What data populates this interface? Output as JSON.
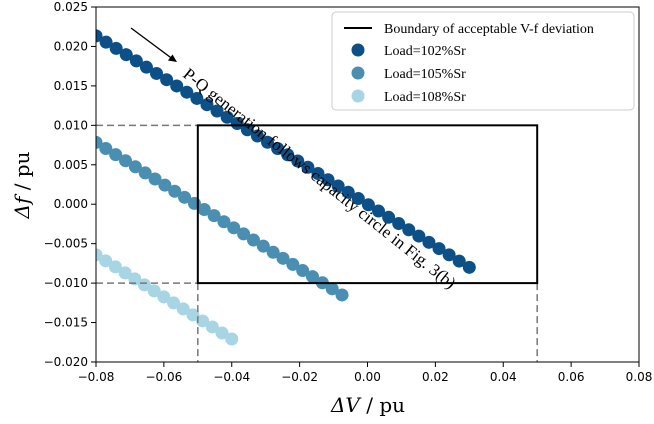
{
  "chart_data": {
    "type": "scatter",
    "xlabel_symbol": "ΔV",
    "xlabel_unit": " / pu",
    "ylabel_symbol": "Δf",
    "ylabel_unit": " / pu",
    "xlim": [
      -0.08,
      0.08
    ],
    "ylim": [
      -0.02,
      0.025
    ],
    "x_ticks": [
      -0.08,
      -0.06,
      -0.04,
      -0.02,
      0.0,
      0.02,
      0.04,
      0.06,
      0.08
    ],
    "x_tick_labels": [
      "−0.08",
      "−0.06",
      "−0.04",
      "−0.02",
      "0.00",
      "0.02",
      "0.04",
      "0.06",
      "0.08"
    ],
    "y_ticks": [
      -0.02,
      -0.015,
      -0.01,
      -0.005,
      0.0,
      0.005,
      0.01,
      0.015,
      0.02,
      0.025
    ],
    "y_tick_labels": [
      "−0.020",
      "−0.015",
      "−0.010",
      "−0.005",
      "0.000",
      "0.005",
      "0.010",
      "0.015",
      "0.020",
      "0.025"
    ],
    "grid": false,
    "legend_position": "top-right",
    "boundary": {
      "name": "Boundary of acceptable V-f deviation",
      "color": "#000000",
      "x_range": [
        -0.05,
        0.05
      ],
      "y_range": [
        -0.01,
        0.01
      ]
    },
    "series": [
      {
        "name": "Load=102%Sr",
        "color": "#0d5088",
        "x_range": [
          -0.08,
          0.03
        ],
        "y_intercept": 0.0,
        "slope": -0.2667,
        "count": 38
      },
      {
        "name": "Load=105%Sr",
        "color": "#4a8fb2",
        "x_range": [
          -0.08,
          -0.0075
        ],
        "y_intercept": -0.0135,
        "slope": -0.2667,
        "count": 26
      },
      {
        "name": "Load=108%Sr",
        "color": "#a8d5e3",
        "x_range": [
          -0.08,
          -0.04
        ],
        "y_intercept": -0.02775,
        "slope": -0.2667,
        "count": 15
      }
    ],
    "annotation": "P-Q generation follows capacity circle in Fig. 3(b)"
  }
}
